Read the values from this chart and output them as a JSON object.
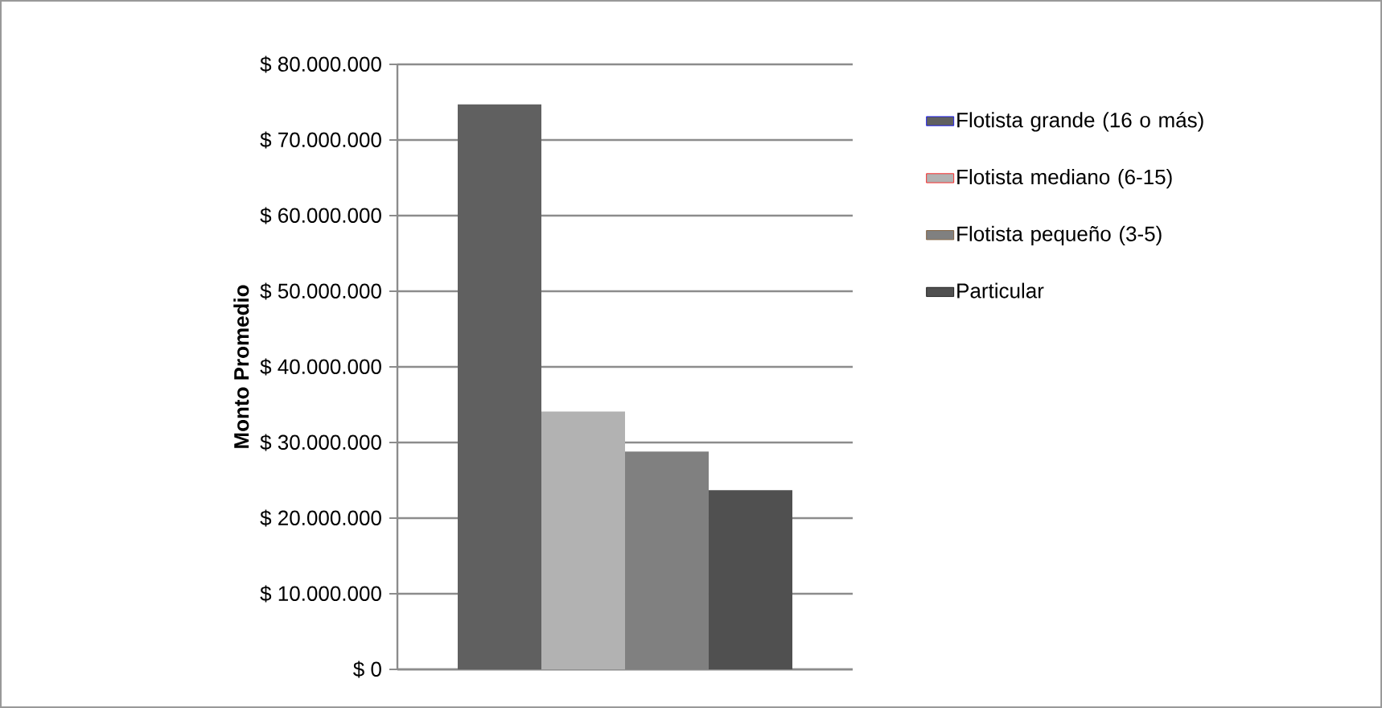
{
  "chart_data": {
    "type": "bar",
    "ylabel": "Monto Promedio",
    "categories": [
      null
    ],
    "series": [
      {
        "name": "Flotista grande (16 o más)",
        "color": "#606060",
        "values": [
          74700000
        ]
      },
      {
        "name": "Flotista mediano (6-15)",
        "color": "#b2b2b2",
        "values": [
          34100000
        ]
      },
      {
        "name": "Flotista pequeño (3-5)",
        "color": "#808080",
        "values": [
          28800000
        ]
      },
      {
        "name": "Particular",
        "color": "#505050",
        "values": [
          23700000
        ]
      }
    ],
    "ylim": [
      0,
      80000000
    ],
    "yticks": [
      {
        "value": 0,
        "label": "$ 0"
      },
      {
        "value": 10000000,
        "label": "$ 10.000.000"
      },
      {
        "value": 20000000,
        "label": "$ 20.000.000"
      },
      {
        "value": 30000000,
        "label": "$ 30.000.000"
      },
      {
        "value": 40000000,
        "label": "$ 40.000.000"
      },
      {
        "value": 50000000,
        "label": "$ 50.000.000"
      },
      {
        "value": 60000000,
        "label": "$ 60.000.000"
      },
      {
        "value": 70000000,
        "label": "$ 70.000.000"
      },
      {
        "value": 80000000,
        "label": "$ 80.000.000"
      }
    ],
    "grid": "y",
    "legend": "right"
  }
}
